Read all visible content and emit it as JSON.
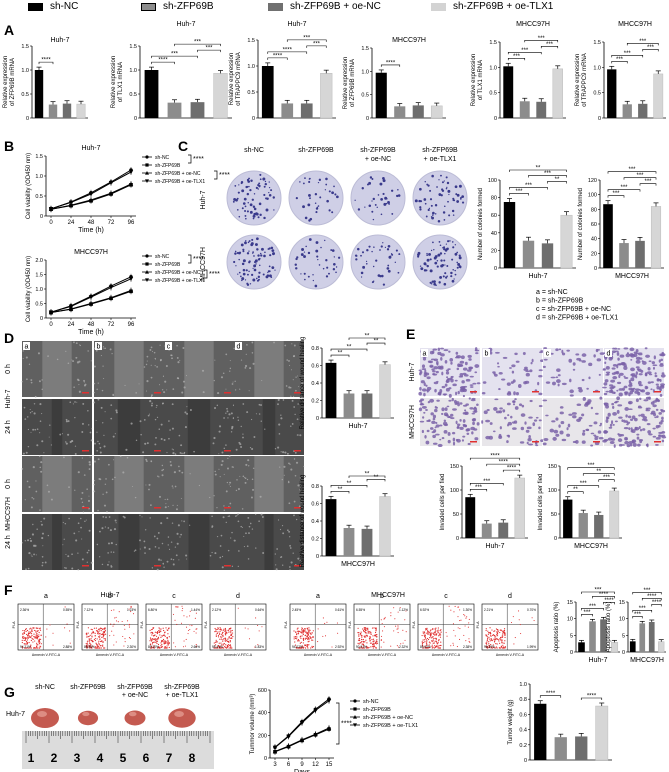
{
  "legend": {
    "items": [
      {
        "label": "sh-NC",
        "color": "#000000"
      },
      {
        "label": "sh-ZFP69B",
        "color": "#8c8c8c"
      },
      {
        "label": "sh-ZFP69B + oe-NC",
        "color": "#707070"
      },
      {
        "label": "sh-ZFP69B + oe-TLX1",
        "color": "#d3d3d3"
      }
    ]
  },
  "colors": {
    "black": "#000000",
    "gray1": "#8c8c8c",
    "gray2": "#6e6e6e",
    "light": "#d6d6d6",
    "dish": "#cfcfe6",
    "dot": "#3a3a8c",
    "scratch": "#5a5a5a",
    "scratchLight": "#b4b4b4",
    "stain": "#7a62a8",
    "flowDot": "#e03030",
    "tumor": "#c45a50"
  },
  "panels": {
    "A": "A",
    "B": "B",
    "C": "C",
    "D": "D",
    "E": "E",
    "F": "F",
    "G": "G"
  },
  "panelA": {
    "charts": [
      {
        "title": "Huh-7",
        "ylabel": [
          "Relative expression",
          "of ZFP69B mRNA"
        ],
        "ylim": [
          0,
          1.5
        ],
        "yticks": [
          "0",
          "0.5",
          "1.0",
          "1.5"
        ],
        "values": [
          1.0,
          0.28,
          0.3,
          0.29
        ],
        "sig": [
          [
            "****",
            0,
            1
          ]
        ]
      },
      {
        "title": "Huh-7",
        "ylabel": [
          "Relative expression",
          "of TLX1 mRNA"
        ],
        "ylim": [
          0,
          1.5
        ],
        "yticks": [
          "0",
          "0.5",
          "1.0",
          "1.5"
        ],
        "values": [
          1.0,
          0.32,
          0.33,
          0.93
        ],
        "sig": [
          [
            "****",
            0,
            1
          ],
          [
            "***",
            0,
            2
          ],
          [
            "***",
            2,
            3
          ],
          [
            "***",
            1,
            3
          ]
        ]
      },
      {
        "title": "Huh-7",
        "ylabel": [
          "Relative expression",
          "of TRAPPC9 mRNA"
        ],
        "ylim": [
          0,
          1.5
        ],
        "yticks": [
          "0",
          "0.5",
          "1.0",
          "1.5"
        ],
        "values": [
          1.0,
          0.28,
          0.28,
          0.86
        ],
        "sig": [
          [
            "****",
            0,
            1
          ],
          [
            "****",
            0,
            2
          ],
          [
            "***",
            2,
            3
          ],
          [
            "***",
            1,
            3
          ]
        ]
      },
      {
        "title": "MHCC97H",
        "ylabel": [
          "Relative expression",
          "of ZFP69B mRNA"
        ],
        "ylim": [
          0,
          1.5
        ],
        "yticks": [
          "0",
          "0.5",
          "1.0",
          "1.5"
        ],
        "values": [
          0.97,
          0.25,
          0.27,
          0.26
        ],
        "sig": [
          [
            "****",
            0,
            1
          ]
        ]
      },
      {
        "title": "MHCC97H",
        "ylabel": [
          "Relative expression",
          "of TLX1 mRNA"
        ],
        "ylim": [
          0,
          1.5
        ],
        "yticks": [
          "0",
          "0.5",
          "1.0",
          "1.5"
        ],
        "values": [
          1.02,
          0.33,
          0.32,
          0.97
        ],
        "sig": [
          [
            "***",
            0,
            1
          ],
          [
            "***",
            0,
            2
          ],
          [
            "***",
            2,
            3
          ],
          [
            "***",
            1,
            3
          ]
        ]
      },
      {
        "title": "MHCC97H",
        "ylabel": [
          "Relative expression",
          "of TRAPPC9 mRNA"
        ],
        "ylim": [
          0,
          1.5
        ],
        "yticks": [
          "0",
          "0.5",
          "1.0",
          "1.5"
        ],
        "values": [
          0.96,
          0.27,
          0.28,
          0.87
        ],
        "sig": [
          [
            "***",
            0,
            1
          ],
          [
            "***",
            0,
            2
          ],
          [
            "***",
            2,
            3
          ],
          [
            "***",
            1,
            3
          ]
        ]
      }
    ]
  },
  "panelB": {
    "charts": [
      {
        "title": "Huh-7",
        "ylabel": "Cell viability (OD450 nm)",
        "xlabel": "Time (h)",
        "x": [
          0,
          24,
          48,
          72,
          96
        ],
        "xticks": [
          "0",
          "24",
          "48",
          "72",
          "96"
        ],
        "ylim": [
          0,
          1.5
        ],
        "yticks": [
          "0",
          "0.5",
          "1.0",
          "1.5"
        ],
        "series": [
          {
            "name": "sh-NC",
            "values": [
              0.18,
              0.35,
              0.58,
              0.85,
              1.15
            ]
          },
          {
            "name": "sh-ZFP69B",
            "values": [
              0.17,
              0.26,
              0.38,
              0.55,
              0.78
            ]
          },
          {
            "name": "sh-ZFP69B + oe-NC",
            "values": [
              0.17,
              0.27,
              0.4,
              0.57,
              0.8
            ]
          },
          {
            "name": "sh-ZFP69B + oe-TLX1",
            "values": [
              0.18,
              0.34,
              0.55,
              0.83,
              1.1
            ]
          }
        ],
        "legend": [
          "sh-NC",
          "sh-ZFP69B",
          "sh-ZFP69B + oe-NC",
          "sh-ZFP69B + oe-TLX1"
        ],
        "sig": [
          "****",
          "****"
        ]
      },
      {
        "title": "MHCC97H",
        "ylabel": "Cell viability (OD450 nm)",
        "xlabel": "Time (h)",
        "x": [
          0,
          24,
          48,
          72,
          96
        ],
        "xticks": [
          "0",
          "24",
          "48",
          "72",
          "96"
        ],
        "ylim": [
          0,
          2.0
        ],
        "yticks": [
          "0",
          "0.5",
          "1.0",
          "1.5",
          "2.0"
        ],
        "series": [
          {
            "name": "sh-NC",
            "values": [
              0.2,
              0.42,
              0.75,
              1.1,
              1.42
            ]
          },
          {
            "name": "sh-ZFP69B",
            "values": [
              0.19,
              0.3,
              0.48,
              0.68,
              0.92
            ]
          },
          {
            "name": "sh-ZFP69B + oe-NC",
            "values": [
              0.19,
              0.31,
              0.5,
              0.7,
              0.95
            ]
          },
          {
            "name": "sh-ZFP69B + oe-TLX1",
            "values": [
              0.2,
              0.4,
              0.72,
              1.05,
              1.35
            ]
          }
        ],
        "legend": [
          "sh-NC",
          "sh-ZFP69B",
          "sh-ZFP69B + oe-NC",
          "sh-ZFP69B + oe-TLX1"
        ],
        "sig": [
          "****",
          "****"
        ]
      }
    ]
  },
  "panelC": {
    "colHeaders": [
      "sh-NC",
      "sh-ZFP69B",
      "sh-ZFP69B\n+ oe-NC",
      "sh-ZFP69B\n+ oe-TLX1"
    ],
    "rowLabels": [
      "Huh-7",
      "MHCC97H"
    ],
    "colonyCounts": [
      [
        70,
        35,
        33,
        60
      ],
      [
        85,
        38,
        40,
        82
      ]
    ],
    "charts": [
      {
        "xlabel": "Huh-7",
        "ylabel": "Number of colonies formed",
        "ylim": [
          0,
          100
        ],
        "yticks": [
          "0",
          "20",
          "40",
          "60",
          "80",
          "100"
        ],
        "values": [
          75,
          31,
          28,
          60
        ],
        "sig": [
          [
            "***",
            0,
            1
          ],
          [
            "***",
            0,
            2
          ],
          [
            "**",
            2,
            3
          ],
          [
            "***",
            1,
            3
          ],
          [
            "**",
            0,
            3
          ]
        ]
      },
      {
        "xlabel": "MHCC97H",
        "ylabel": "Number of colonies formed",
        "ylim": [
          0,
          120
        ],
        "yticks": [
          "0",
          "20",
          "40",
          "60",
          "80",
          "100",
          "120"
        ],
        "values": [
          87,
          34,
          37,
          84
        ],
        "sig": [
          [
            "***",
            0,
            1
          ],
          [
            "***",
            0,
            2
          ],
          [
            "***",
            2,
            3
          ],
          [
            "***",
            1,
            3
          ],
          [
            "***",
            0,
            3
          ]
        ]
      }
    ],
    "key": [
      "a = sh-NC",
      "b = sh-ZFP69B",
      "c = sh-ZFP69B + oe-NC",
      "d = sh-ZFP69B + oe-TLX1"
    ]
  },
  "panelD": {
    "colLetters": [
      "a",
      "b",
      "c",
      "d"
    ],
    "timeLabels": [
      "0 h",
      "24 h",
      "0 h",
      "24 h"
    ],
    "cellLabels": [
      "Huh-7",
      "MHCC97H"
    ],
    "gapFractions": [
      [
        0.42,
        0.42,
        0.42,
        0.42
      ],
      [
        0.15,
        0.32,
        0.32,
        0.18
      ],
      [
        0.42,
        0.42,
        0.42,
        0.42
      ],
      [
        0.14,
        0.3,
        0.3,
        0.13
      ]
    ],
    "charts": [
      {
        "xlabel": "Huh-7",
        "ylabel": "Relative distance of wound healing",
        "ylim": [
          0,
          0.8
        ],
        "yticks": [
          "0",
          "0.2",
          "0.4",
          "0.6",
          "0.8"
        ],
        "values": [
          0.63,
          0.28,
          0.28,
          0.61
        ],
        "sig": [
          [
            "**",
            0,
            1
          ],
          [
            "**",
            0,
            2
          ],
          [
            "**",
            2,
            3
          ],
          [
            "**",
            1,
            3
          ]
        ]
      },
      {
        "xlabel": "MHCC97H",
        "ylabel": "Relative distance of wound healing",
        "ylim": [
          0,
          0.8
        ],
        "yticks": [
          "0",
          "0.2",
          "0.4",
          "0.6",
          "0.8"
        ],
        "values": [
          0.65,
          0.32,
          0.31,
          0.68
        ],
        "sig": [
          [
            "**",
            0,
            1
          ],
          [
            "**",
            0,
            2
          ],
          [
            "**",
            2,
            3
          ],
          [
            "**",
            1,
            3
          ]
        ]
      }
    ]
  },
  "panelE": {
    "colLetters": [
      "a",
      "b",
      "c",
      "d"
    ],
    "rowLabels": [
      "Huh-7",
      "MHCC97H"
    ],
    "cellDensity": [
      [
        0.6,
        0.2,
        0.22,
        0.7
      ],
      [
        0.55,
        0.3,
        0.3,
        0.6
      ]
    ],
    "charts": [
      {
        "xlabel": "Huh-7",
        "ylabel": "Invaded cells per fied",
        "ylim": [
          0,
          150
        ],
        "yticks": [
          "0",
          "50",
          "100",
          "150"
        ],
        "values": [
          85,
          30,
          32,
          125
        ],
        "sig": [
          [
            "***",
            0,
            1
          ],
          [
            "***",
            0,
            2
          ],
          [
            "****",
            2,
            3
          ],
          [
            "****",
            1,
            3
          ],
          [
            "****",
            0,
            3
          ]
        ]
      },
      {
        "xlabel": "MHCC97H",
        "ylabel": "Invaded cells per fied",
        "ylim": [
          0,
          150
        ],
        "yticks": [
          "0",
          "50",
          "100",
          "150"
        ],
        "values": [
          80,
          52,
          48,
          98
        ],
        "sig": [
          [
            "**",
            0,
            1
          ],
          [
            "***",
            0,
            2
          ],
          [
            "***",
            2,
            3
          ],
          [
            "**",
            1,
            3
          ],
          [
            "***",
            0,
            3
          ]
        ]
      }
    ]
  },
  "panelF": {
    "cellLabels": [
      "Huh-7",
      "MHCC97H"
    ],
    "letters": [
      "a",
      "b",
      "c",
      "d",
      "a",
      "b",
      "c",
      "d"
    ],
    "quadrants": [
      [
        "2.36%",
        "0.55%",
        "94.21%",
        "2.88%"
      ],
      [
        "7.12%",
        "1.23%",
        "89.35%",
        "2.30%"
      ],
      [
        "6.80%",
        "1.44%",
        "89.10%",
        "2.66%"
      ],
      [
        "2.12%",
        "0.64%",
        "95.41%",
        "1.83%"
      ],
      [
        "2.45%",
        "0.61%",
        "94.02%",
        "2.92%"
      ],
      [
        "6.55%",
        "1.12%",
        "90.01%",
        "2.32%"
      ],
      [
        "6.92%",
        "1.30%",
        "89.40%",
        "2.38%"
      ],
      [
        "2.21%",
        "0.70%",
        "95.10%",
        "1.99%"
      ]
    ],
    "axisX": "Annexin V-FITC-A",
    "axisY": "PI-A",
    "charts": [
      {
        "xlabel": "Huh-7",
        "ylabel": "Apoptosis ratio (%)",
        "ylim": [
          0,
          15
        ],
        "yticks": [
          "0",
          "5",
          "10",
          "15"
        ],
        "values": [
          2.9,
          9.2,
          9.8,
          2.9
        ],
        "sig": [
          [
            "***",
            0,
            1
          ],
          [
            "***",
            0,
            2
          ],
          [
            "****",
            2,
            3
          ],
          [
            "****",
            1,
            3
          ],
          [
            "***",
            0,
            3
          ]
        ]
      },
      {
        "xlabel": "MHCC97H",
        "ylabel": "Apoptosis ratio (%)",
        "ylim": [
          0,
          15
        ],
        "yticks": [
          "0",
          "5",
          "10",
          "15"
        ],
        "values": [
          3.2,
          8.6,
          9.0,
          3.1
        ],
        "sig": [
          [
            "***",
            0,
            1
          ],
          [
            "***",
            0,
            2
          ],
          [
            "****",
            2,
            3
          ],
          [
            "****",
            1,
            3
          ],
          [
            "***",
            0,
            3
          ]
        ]
      }
    ]
  },
  "panelG": {
    "tumorLabels": [
      "sh-NC",
      "sh-ZFP69B",
      "sh-ZFP69B\n+ oe-NC",
      "sh-ZFP69B\n+ oe-TLX1"
    ],
    "tumorScale": [
      1.0,
      0.72,
      0.75,
      0.98
    ],
    "rowLabel": "Huh-7",
    "rulerNumbers": [
      "1",
      "2",
      "3",
      "4",
      "5",
      "6",
      "7",
      "8"
    ],
    "volume": {
      "xlabel": "Days",
      "ylabel": "Tummor volume (mm³)",
      "x": [
        3,
        6,
        9,
        12,
        15
      ],
      "xticks": [
        "3",
        "6",
        "9",
        "12",
        "15"
      ],
      "ylim": [
        0,
        600
      ],
      "yticks": [
        "0",
        "200",
        "400",
        "600"
      ],
      "series": [
        {
          "name": "sh-NC",
          "values": [
            95,
            195,
            320,
            430,
            520
          ]
        },
        {
          "name": "sh-ZFP69B",
          "values": [
            55,
            100,
            155,
            205,
            255
          ]
        },
        {
          "name": "sh-ZFP69B + oe-NC",
          "values": [
            58,
            105,
            160,
            210,
            265
          ]
        },
        {
          "name": "sh-ZFP69B + oe-TLX1",
          "values": [
            92,
            190,
            310,
            420,
            505
          ]
        }
      ],
      "legend": [
        "sh-NC",
        "sh-ZFP69B",
        "sh-ZFP69B + oe-NC",
        "sh-ZFP69B + oe-TLX1"
      ],
      "sig": [
        "****",
        "****"
      ]
    },
    "weight": {
      "ylabel": "Tumor weight (g)",
      "ylim": [
        0,
        1.0
      ],
      "yticks": [
        "0",
        "0.2",
        "0.4",
        "0.6",
        "0.8",
        "1.0"
      ],
      "values": [
        0.74,
        0.3,
        0.31,
        0.71
      ],
      "sig": [
        [
          "****",
          0,
          1
        ],
        [
          "****",
          2,
          3
        ]
      ]
    }
  }
}
